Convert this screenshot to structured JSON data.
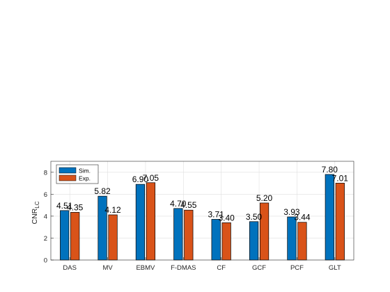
{
  "chart_data": {
    "type": "bar",
    "categories": [
      "DAS",
      "MV",
      "EBMV",
      "F-DMAS",
      "CF",
      "GCF",
      "PCF",
      "GLT"
    ],
    "series": [
      {
        "name": "Sim.",
        "color": "#0072BD",
        "values": [
          4.51,
          5.82,
          6.9,
          4.7,
          3.71,
          3.5,
          3.93,
          7.8
        ]
      },
      {
        "name": "Exp.",
        "color": "#D95319",
        "values": [
          4.35,
          4.12,
          7.05,
          4.55,
          3.4,
          5.2,
          3.44,
          7.01
        ]
      }
    ],
    "data_labels": [
      [
        "4.51",
        "5.82",
        "6.90",
        "4.70",
        "3.71",
        "3.50",
        "3.93",
        "7.80"
      ],
      [
        "4.35",
        "4.12",
        "7.05",
        "4.55",
        "3.40",
        "5.20",
        "3.44",
        "7.01"
      ]
    ],
    "title": "",
    "xlabel": "",
    "ylabel": "CNR",
    "ylabel_subscript": "LC",
    "ylim": [
      0,
      9
    ],
    "yticks": [
      0,
      2,
      4,
      6,
      8
    ],
    "ytick_labels": [
      "0",
      "2",
      "4",
      "6",
      "8"
    ],
    "grid": true,
    "legend_position": "top-left"
  }
}
